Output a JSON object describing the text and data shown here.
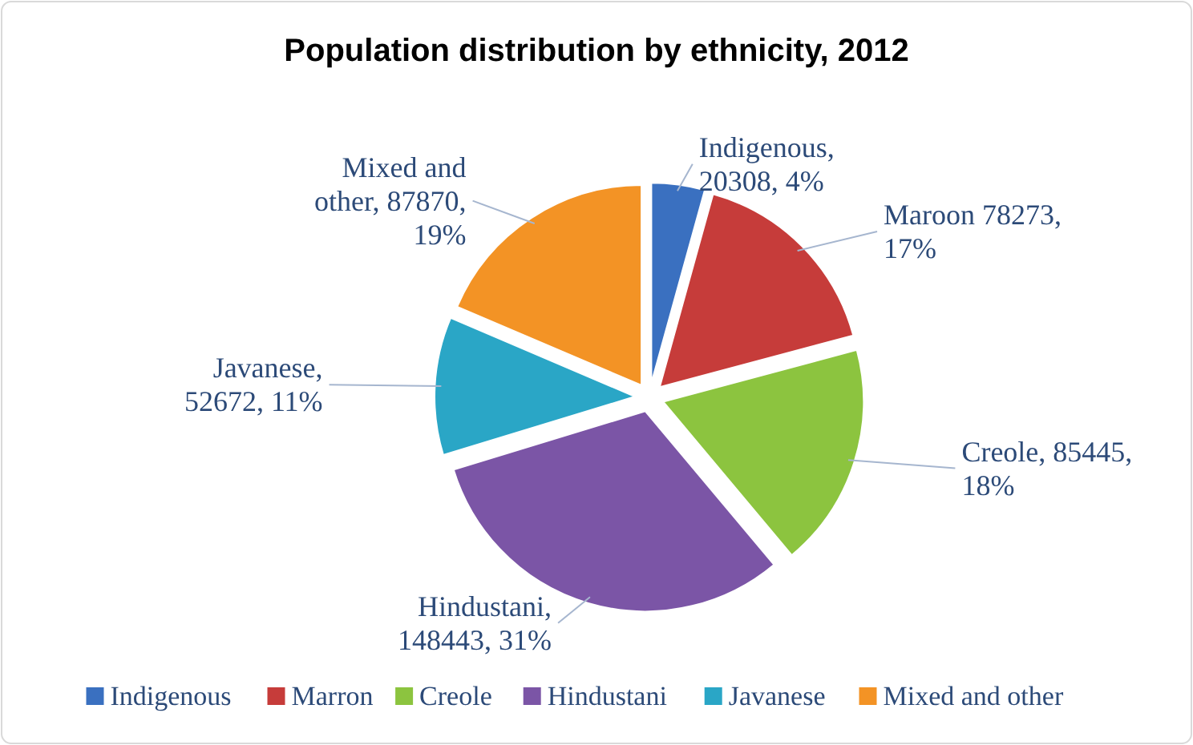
{
  "chart_data": {
    "type": "pie",
    "title": "Population distribution by ethnicity, 2012",
    "categories": [
      "Indigenous",
      "Marron",
      "Creole",
      "Hindustani",
      "Javanese",
      "Mixed and other"
    ],
    "values": [
      20308,
      78273,
      85445,
      148443,
      52672,
      87870
    ],
    "colors": [
      "#3a70c0",
      "#c63c3a",
      "#8cc43f",
      "#7b55a6",
      "#2aa6c6",
      "#f39325"
    ],
    "value_labels": [
      "Indigenous, 20308, 4%",
      "Maroon 78273, 17%",
      "Creole, 85445, 18%",
      "Hindustani, 148443, 31%",
      "Javanese, 52672, 11%",
      "Mixed and other, 87870, 19%"
    ],
    "legend": "bottom"
  }
}
